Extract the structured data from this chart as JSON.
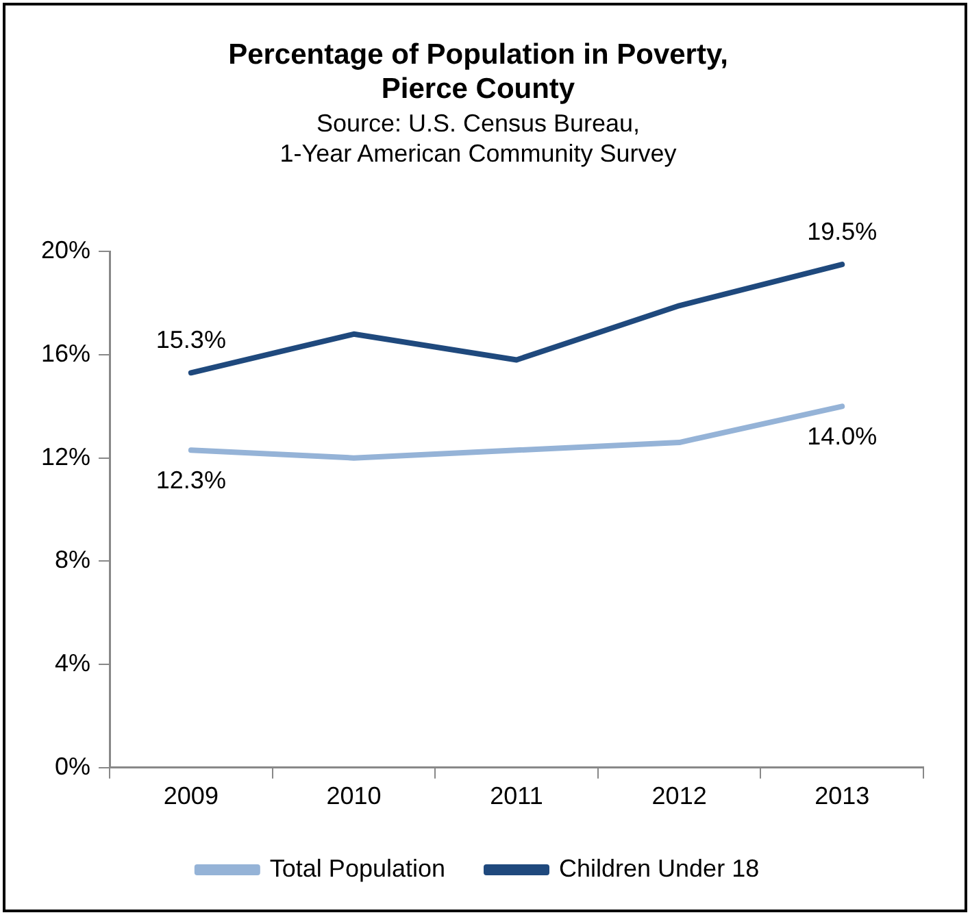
{
  "chart_data": {
    "type": "line",
    "title": "Percentage of Population in Poverty,\nPierce County",
    "subtitle": "Source: U.S. Census Bureau,\n1-Year American Community Survey",
    "categories": [
      "2009",
      "2010",
      "2011",
      "2012",
      "2013"
    ],
    "series": [
      {
        "name": "Total Population",
        "color": "#95b3d7",
        "values": [
          12.3,
          12.0,
          12.3,
          12.6,
          14.0
        ],
        "value_labels": [
          "12.3%",
          null,
          null,
          null,
          "14.0%"
        ]
      },
      {
        "name": "Children Under 18",
        "color": "#1f497d",
        "values": [
          15.3,
          16.8,
          15.8,
          17.9,
          19.5
        ],
        "value_labels": [
          "15.3%",
          null,
          null,
          null,
          "19.5%"
        ]
      }
    ],
    "ylim": [
      0,
      20
    ],
    "yticks": [
      {
        "value": 0,
        "label": "0%"
      },
      {
        "value": 4,
        "label": "4%"
      },
      {
        "value": 8,
        "label": "8%"
      },
      {
        "value": 12,
        "label": "12%"
      },
      {
        "value": 16,
        "label": "16%"
      },
      {
        "value": 20,
        "label": "20%"
      }
    ],
    "grid": false,
    "legend": "bottom",
    "marker": "none",
    "line_style": "solid"
  }
}
